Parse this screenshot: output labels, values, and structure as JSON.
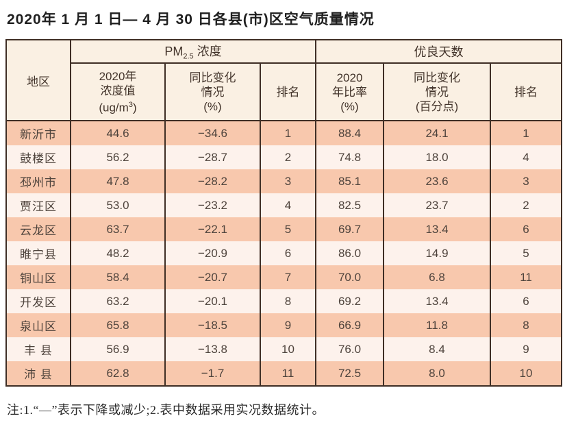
{
  "title": "2020年 1 月 1 日— 4 月 30 日各县(市)区空气质量情况",
  "colors": {
    "row_odd": "#f8c8ad",
    "row_even": "#fdf2ec",
    "header_bg": "#faf0e3",
    "border": "#3f2e25",
    "header_text": "#42332a",
    "cell_text": "#4e433c"
  },
  "table": {
    "header": {
      "region": "地区",
      "pm25_group": {
        "prefix": "PM",
        "sub": "2.5",
        "suffix": " 浓度"
      },
      "good_days_group": "优良天数",
      "cols": {
        "concentration": {
          "line1": "2020年",
          "line2": "浓度值",
          "unit_pre": "(ug/m",
          "unit_sup": "3",
          "unit_post": ")"
        },
        "pm_change": {
          "line1": "同比变化",
          "line2": "情况",
          "line3": "(%)"
        },
        "pm_rank": "排名",
        "ratio": {
          "line1": "2020",
          "line2": "年比率",
          "line3": "(%)"
        },
        "days_change": {
          "line1": "同比变化",
          "line2": "情况",
          "line3": "(百分点)"
        },
        "days_rank": "排名"
      }
    },
    "rows": [
      {
        "region": "新沂市",
        "pm_value": "44.6",
        "pm_change": "−34.6",
        "pm_rank": "1",
        "days_ratio": "88.4",
        "days_change": "24.1",
        "days_rank": "1"
      },
      {
        "region": "鼓楼区",
        "pm_value": "56.2",
        "pm_change": "−28.7",
        "pm_rank": "2",
        "days_ratio": "74.8",
        "days_change": "18.0",
        "days_rank": "4"
      },
      {
        "region": "邳州市",
        "pm_value": "47.8",
        "pm_change": "−28.2",
        "pm_rank": "3",
        "days_ratio": "85.1",
        "days_change": "23.6",
        "days_rank": "3"
      },
      {
        "region": "贾汪区",
        "pm_value": "53.0",
        "pm_change": "−23.2",
        "pm_rank": "4",
        "days_ratio": "82.5",
        "days_change": "23.7",
        "days_rank": "2"
      },
      {
        "region": "云龙区",
        "pm_value": "63.7",
        "pm_change": "−22.1",
        "pm_rank": "5",
        "days_ratio": "69.7",
        "days_change": "13.4",
        "days_rank": "6"
      },
      {
        "region": "睢宁县",
        "pm_value": "48.2",
        "pm_change": "−20.9",
        "pm_rank": "6",
        "days_ratio": "86.0",
        "days_change": "14.9",
        "days_rank": "5"
      },
      {
        "region": "铜山区",
        "pm_value": "58.4",
        "pm_change": "−20.7",
        "pm_rank": "7",
        "days_ratio": "70.0",
        "days_change": "6.8",
        "days_rank": "11"
      },
      {
        "region": "开发区",
        "pm_value": "63.2",
        "pm_change": "−20.1",
        "pm_rank": "8",
        "days_ratio": "69.2",
        "days_change": "13.4",
        "days_rank": "6"
      },
      {
        "region": "泉山区",
        "pm_value": "65.8",
        "pm_change": "−18.5",
        "pm_rank": "9",
        "days_ratio": "66.9",
        "days_change": "11.8",
        "days_rank": "8"
      },
      {
        "region": "丰 县",
        "pm_value": "56.9",
        "pm_change": "−13.8",
        "pm_rank": "10",
        "days_ratio": "76.0",
        "days_change": "8.4",
        "days_rank": "9"
      },
      {
        "region": "沛 县",
        "pm_value": "62.8",
        "pm_change": "−1.7",
        "pm_rank": "11",
        "days_ratio": "72.5",
        "days_change": "8.0",
        "days_rank": "10"
      }
    ]
  },
  "footnote": "注:1.“—”表示下降或减少;2.表中数据采用实况数据统计。"
}
